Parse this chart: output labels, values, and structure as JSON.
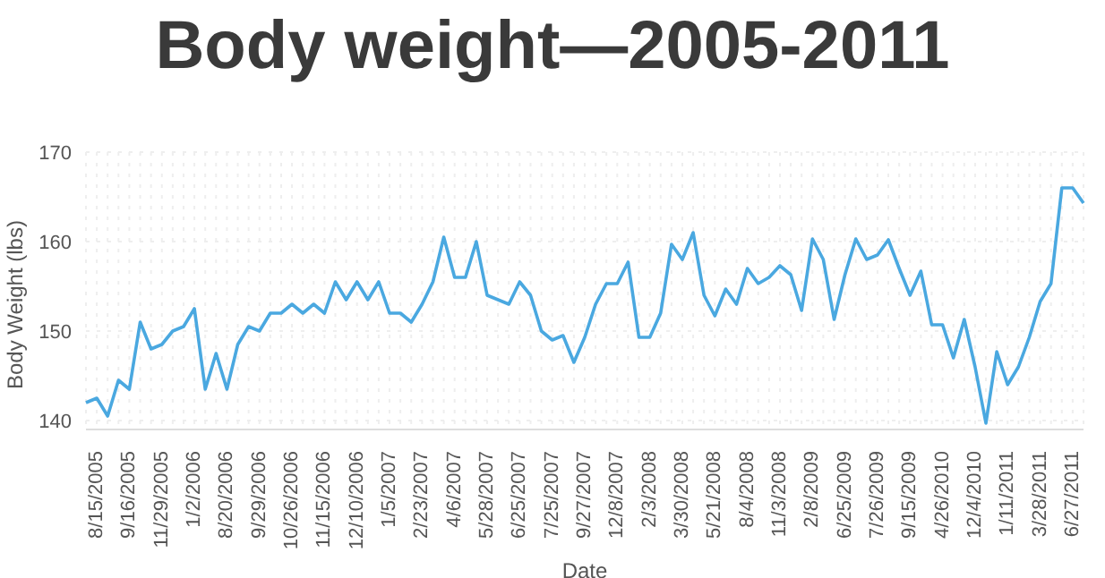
{
  "chart_data": {
    "type": "line",
    "title": "Body weight—2005-2011",
    "xlabel": "Date",
    "ylabel": "Body Weight (lbs)",
    "categories": [
      null,
      "8/15/2005",
      null,
      null,
      "9/16/2005",
      null,
      null,
      "11/29/2005",
      null,
      null,
      "1/2/2006",
      null,
      null,
      "8/20/2006",
      null,
      null,
      "9/29/2006",
      null,
      null,
      "10/26/2006",
      null,
      null,
      "11/15/2006",
      null,
      null,
      "12/10/2006",
      null,
      null,
      "1/5/2007",
      null,
      null,
      "2/23/2007",
      null,
      null,
      "4/6/2007",
      null,
      null,
      "5/28/2007",
      null,
      null,
      "6/25/2007",
      null,
      null,
      "7/25/2007",
      null,
      null,
      "9/27/2007",
      null,
      null,
      "12/8/2007",
      null,
      null,
      "2/3/2008",
      null,
      null,
      "3/30/2008",
      null,
      null,
      "5/21/2008",
      null,
      null,
      "8/4/2008",
      null,
      null,
      "11/3/2008",
      null,
      null,
      "2/8/2009",
      null,
      null,
      "6/25/2009",
      null,
      null,
      "7/26/2009",
      null,
      null,
      "9/15/2009",
      null,
      null,
      "4/26/2010",
      null,
      null,
      "12/4/2010",
      null,
      null,
      "1/11/2011",
      null,
      null,
      "3/28/2011",
      null,
      null,
      "6/27/2011",
      null
    ],
    "series": [
      {
        "color": "#4aa8e0",
        "values": [
          142,
          142.5,
          140.5,
          144.5,
          143.5,
          151,
          148,
          148.5,
          150,
          150.5,
          152.5,
          143.5,
          147.5,
          143.5,
          148.5,
          150.5,
          150,
          152,
          152,
          153,
          152,
          153,
          152,
          155.5,
          153.5,
          155.5,
          153.5,
          155.5,
          152,
          152,
          151,
          153,
          155.5,
          160.5,
          156,
          156,
          160,
          154,
          153.5,
          153,
          155.5,
          154,
          150,
          149,
          149.5,
          146.5,
          149.3,
          153,
          155.3,
          155.3,
          157.7,
          149.3,
          149.3,
          152,
          159.7,
          158,
          161,
          154,
          151.7,
          154.7,
          153,
          157,
          155.3,
          156,
          157.3,
          156.3,
          152.3,
          160.3,
          158,
          151.3,
          156.3,
          160.3,
          158,
          158.5,
          160.2,
          157,
          154,
          156.7,
          150.7,
          150.7,
          147,
          151.3,
          146,
          139.7,
          147.7,
          144,
          146,
          149.3,
          153.3,
          155.3,
          166,
          166,
          164.3
        ]
      }
    ],
    "ylim": [
      139,
      170
    ],
    "yticks": [
      140,
      150,
      160,
      170
    ],
    "grid": true,
    "marker": "none",
    "line_style": "solid"
  }
}
